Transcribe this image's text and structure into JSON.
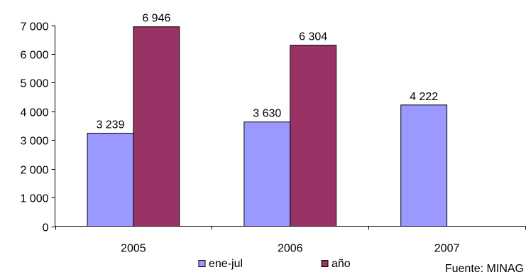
{
  "chart_data": {
    "type": "bar",
    "categories": [
      "2005",
      "2006",
      "2007"
    ],
    "series": [
      {
        "name": "ene-jul",
        "values": [
          3239,
          3630,
          4222
        ],
        "data_labels": [
          "3 239",
          "3 630",
          "4 222"
        ],
        "color": "#9999ff"
      },
      {
        "name": "año",
        "values": [
          6946,
          6304,
          null
        ],
        "data_labels": [
          "6 946",
          "6 304",
          ""
        ],
        "color": "#993366"
      }
    ],
    "ylim": [
      0,
      7000
    ],
    "yticks": [
      0,
      1000,
      2000,
      3000,
      4000,
      5000,
      6000,
      7000
    ],
    "ytick_labels": [
      "0",
      "1 000",
      "2 000",
      "3 000",
      "4 000",
      "5 000",
      "6 000",
      "7 000"
    ],
    "grid": false,
    "legend_position": "bottom",
    "source": "Fuente: MINAG"
  }
}
